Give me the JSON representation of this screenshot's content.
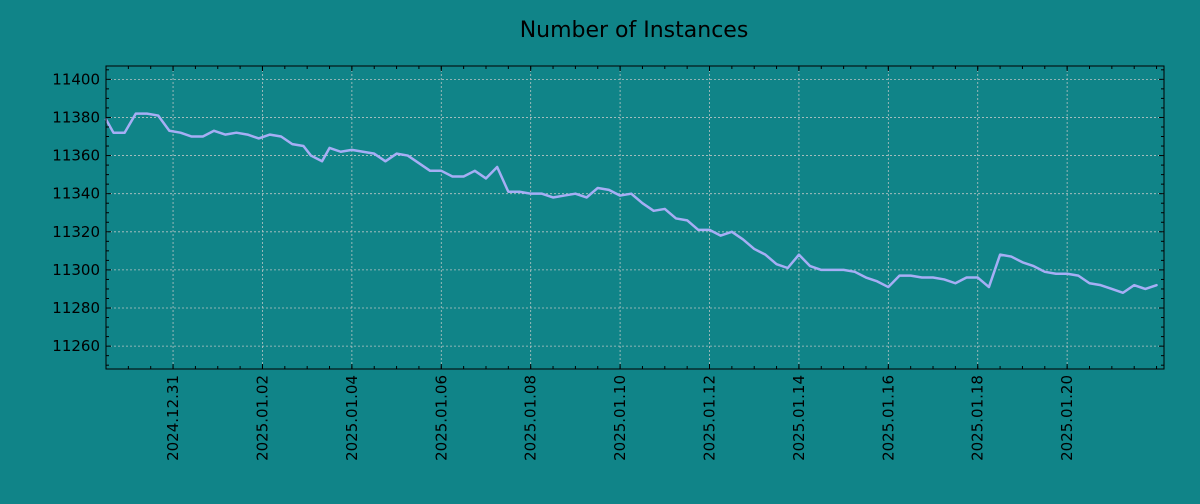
{
  "colors": {
    "background": "#108488",
    "line": "#a6aef5",
    "grid": "#b8c4c4",
    "axis": "#000000"
  },
  "chart_data": {
    "type": "line",
    "title": "Number of Instances",
    "xlabel": "",
    "ylabel": "",
    "x_type": "date",
    "xlim": [
      "2024-12-29 12:00",
      "2025-01-22 04:00"
    ],
    "ylim": [
      11248,
      11407
    ],
    "y_ticks": [
      11260,
      11280,
      11300,
      11320,
      11340,
      11360,
      11380,
      11400
    ],
    "x_ticks": [
      "2024.12.31",
      "2025.01.02",
      "2025.01.04",
      "2025.01.06",
      "2025.01.08",
      "2025.01.10",
      "2025.01.12",
      "2025.01.14",
      "2025.01.16",
      "2025.01.18",
      "2025.01.20"
    ],
    "grid": true,
    "series": [
      {
        "points": [
          [
            "2024-12-29 12:00",
            11379
          ],
          [
            "2024-12-29 16:00",
            11372
          ],
          [
            "2024-12-29 22:00",
            11372
          ],
          [
            "2024-12-30 04:00",
            11382
          ],
          [
            "2024-12-30 10:00",
            11382
          ],
          [
            "2024-12-30 16:00",
            11381
          ],
          [
            "2024-12-30 22:00",
            11373
          ],
          [
            "2024-12-31 04:00",
            11372
          ],
          [
            "2024-12-31 10:00",
            11370
          ],
          [
            "2024-12-31 16:00",
            11370
          ],
          [
            "2024-12-31 22:00",
            11373
          ],
          [
            "2025-01-01 04:00",
            11371
          ],
          [
            "2025-01-01 10:00",
            11372
          ],
          [
            "2025-01-01 16:00",
            11371
          ],
          [
            "2025-01-01 22:00",
            11369
          ],
          [
            "2025-01-02 04:00",
            11371
          ],
          [
            "2025-01-02 10:00",
            11370
          ],
          [
            "2025-01-02 16:00",
            11366
          ],
          [
            "2025-01-02 22:00",
            11365
          ],
          [
            "2025-01-03 02:00",
            11360
          ],
          [
            "2025-01-03 08:00",
            11357
          ],
          [
            "2025-01-03 12:00",
            11364
          ],
          [
            "2025-01-03 18:00",
            11362
          ],
          [
            "2025-01-04 00:00",
            11363
          ],
          [
            "2025-01-04 06:00",
            11362
          ],
          [
            "2025-01-04 12:00",
            11361
          ],
          [
            "2025-01-04 18:00",
            11357
          ],
          [
            "2025-01-05 00:00",
            11361
          ],
          [
            "2025-01-05 06:00",
            11360
          ],
          [
            "2025-01-05 12:00",
            11356
          ],
          [
            "2025-01-05 18:00",
            11352
          ],
          [
            "2025-01-06 00:00",
            11352
          ],
          [
            "2025-01-06 06:00",
            11349
          ],
          [
            "2025-01-06 12:00",
            11349
          ],
          [
            "2025-01-06 18:00",
            11352
          ],
          [
            "2025-01-07 00:00",
            11348
          ],
          [
            "2025-01-07 06:00",
            11354
          ],
          [
            "2025-01-07 12:00",
            11341
          ],
          [
            "2025-01-07 18:00",
            11341
          ],
          [
            "2025-01-08 00:00",
            11340
          ],
          [
            "2025-01-08 06:00",
            11340
          ],
          [
            "2025-01-08 12:00",
            11338
          ],
          [
            "2025-01-08 18:00",
            11339
          ],
          [
            "2025-01-09 00:00",
            11340
          ],
          [
            "2025-01-09 06:00",
            11338
          ],
          [
            "2025-01-09 12:00",
            11343
          ],
          [
            "2025-01-09 18:00",
            11342
          ],
          [
            "2025-01-10 00:00",
            11339
          ],
          [
            "2025-01-10 06:00",
            11340
          ],
          [
            "2025-01-10 12:00",
            11335
          ],
          [
            "2025-01-10 18:00",
            11331
          ],
          [
            "2025-01-11 00:00",
            11332
          ],
          [
            "2025-01-11 06:00",
            11327
          ],
          [
            "2025-01-11 12:00",
            11326
          ],
          [
            "2025-01-11 18:00",
            11321
          ],
          [
            "2025-01-12 00:00",
            11321
          ],
          [
            "2025-01-12 06:00",
            11318
          ],
          [
            "2025-01-12 12:00",
            11320
          ],
          [
            "2025-01-12 18:00",
            11316
          ],
          [
            "2025-01-13 00:00",
            11311
          ],
          [
            "2025-01-13 06:00",
            11308
          ],
          [
            "2025-01-13 12:00",
            11303
          ],
          [
            "2025-01-13 18:00",
            11301
          ],
          [
            "2025-01-14 00:00",
            11308
          ],
          [
            "2025-01-14 06:00",
            11302
          ],
          [
            "2025-01-14 12:00",
            11300
          ],
          [
            "2025-01-14 18:00",
            11300
          ],
          [
            "2025-01-15 00:00",
            11300
          ],
          [
            "2025-01-15 06:00",
            11299
          ],
          [
            "2025-01-15 12:00",
            11296
          ],
          [
            "2025-01-15 18:00",
            11294
          ],
          [
            "2025-01-16 00:00",
            11291
          ],
          [
            "2025-01-16 06:00",
            11297
          ],
          [
            "2025-01-16 12:00",
            11297
          ],
          [
            "2025-01-16 18:00",
            11296
          ],
          [
            "2025-01-17 00:00",
            11296
          ],
          [
            "2025-01-17 06:00",
            11295
          ],
          [
            "2025-01-17 12:00",
            11293
          ],
          [
            "2025-01-17 18:00",
            11296
          ],
          [
            "2025-01-18 00:00",
            11296
          ],
          [
            "2025-01-18 06:00",
            11291
          ],
          [
            "2025-01-18 12:00",
            11308
          ],
          [
            "2025-01-18 18:00",
            11307
          ],
          [
            "2025-01-19 00:00",
            11304
          ],
          [
            "2025-01-19 06:00",
            11302
          ],
          [
            "2025-01-19 12:00",
            11299
          ],
          [
            "2025-01-19 18:00",
            11298
          ],
          [
            "2025-01-20 00:00",
            11298
          ],
          [
            "2025-01-20 06:00",
            11297
          ],
          [
            "2025-01-20 12:00",
            11293
          ],
          [
            "2025-01-20 18:00",
            11292
          ],
          [
            "2025-01-21 00:00",
            11290
          ],
          [
            "2025-01-21 06:00",
            11288
          ],
          [
            "2025-01-21 12:00",
            11292
          ],
          [
            "2025-01-21 18:00",
            11290
          ],
          [
            "2025-01-22 00:00",
            11292
          ]
        ]
      }
    ]
  }
}
